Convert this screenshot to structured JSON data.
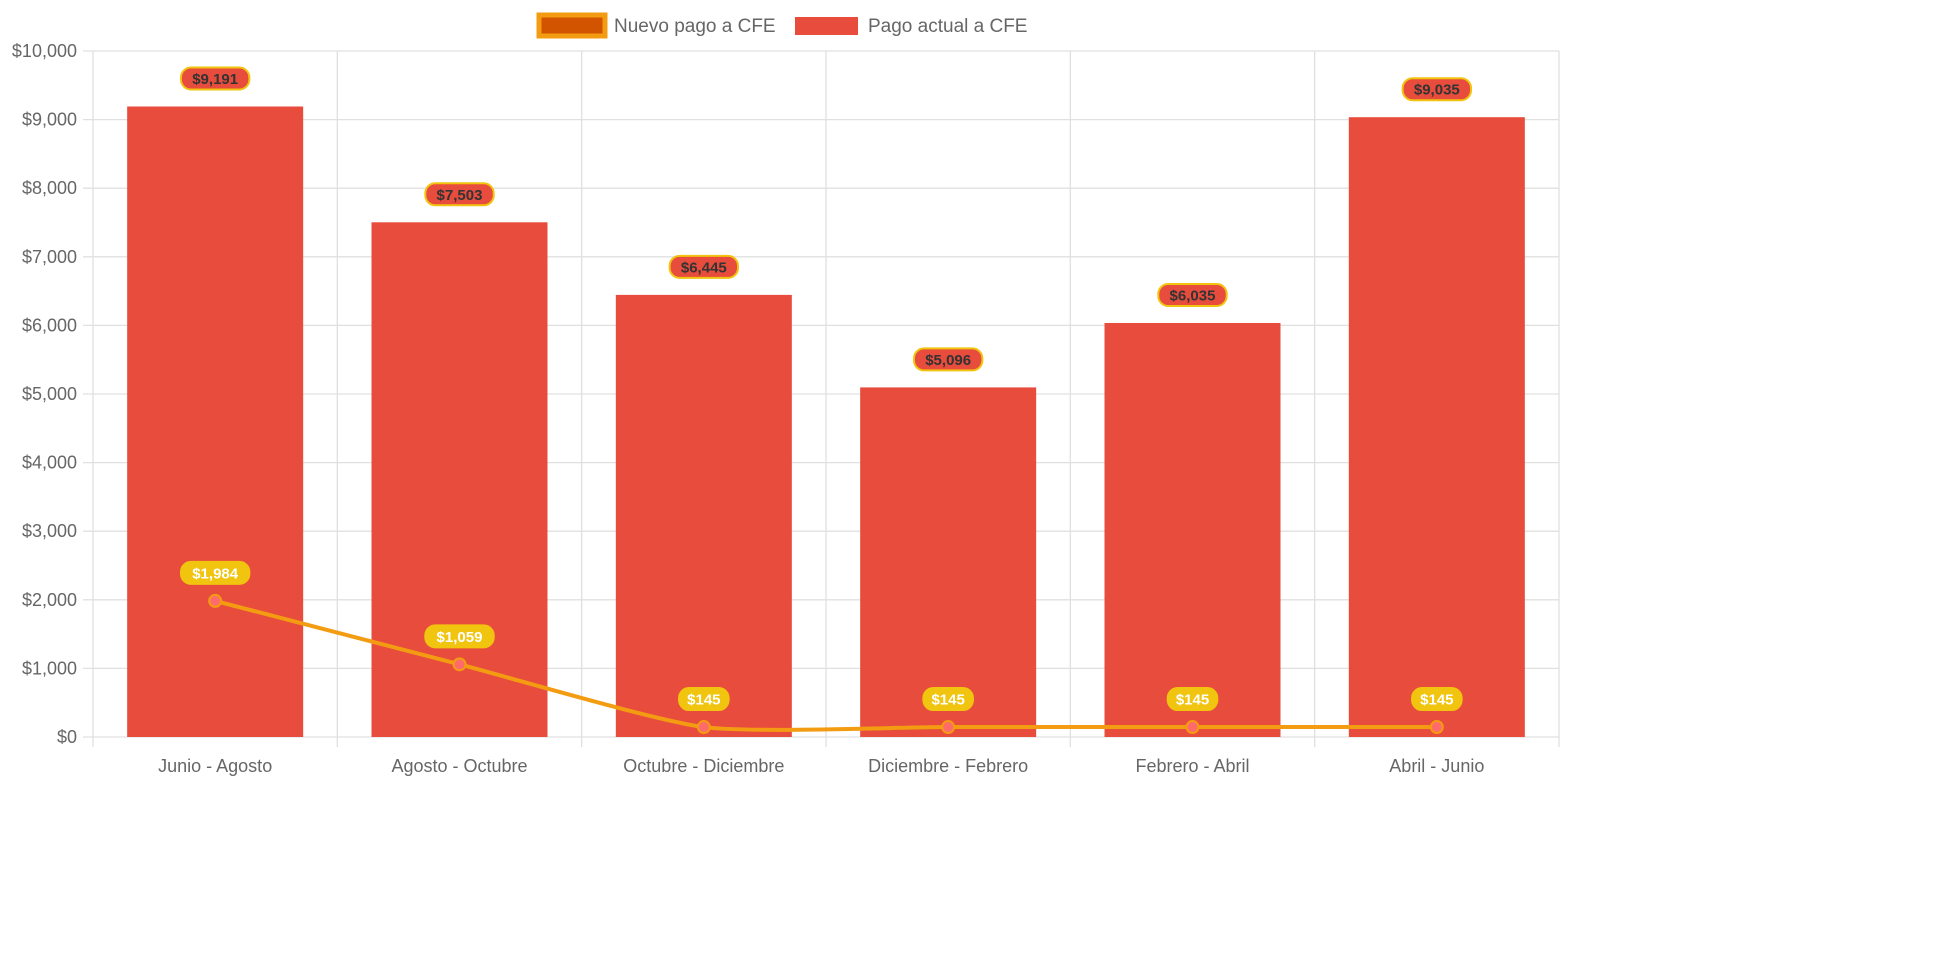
{
  "chart_data": {
    "type": "bar",
    "title": "",
    "xlabel": "",
    "ylabel": "",
    "categories": [
      "Junio - Agosto",
      "Agosto - Octubre",
      "Octubre - Diciembre",
      "Diciembre - Febrero",
      "Febrero - Abril",
      "Abril - Junio"
    ],
    "ylim": [
      0,
      10000
    ],
    "yticks": [
      0,
      1000,
      2000,
      3000,
      4000,
      5000,
      6000,
      7000,
      8000,
      9000,
      10000
    ],
    "ytick_labels": [
      "$0",
      "$1,000",
      "$2,000",
      "$3,000",
      "$4,000",
      "$5,000",
      "$6,000",
      "$7,000",
      "$8,000",
      "$9,000",
      "$10,000"
    ],
    "grid": true,
    "legend_position": "top-center",
    "series": [
      {
        "name": "Nuevo pago a CFE",
        "type": "line",
        "values": [
          1984,
          1059,
          145,
          145,
          145,
          145
        ],
        "labels": [
          "$1,984",
          "$1,059",
          "$145",
          "$145",
          "$145",
          "$145"
        ],
        "color": "#f39c12",
        "legend_fill": "#d35400",
        "point_color": "#ff6b6b",
        "label_bg": "#f1c40f",
        "label_text": "#ffffff"
      },
      {
        "name": "Pago actual a CFE",
        "type": "bar",
        "values": [
          9191,
          7503,
          6445,
          5096,
          6035,
          9035
        ],
        "labels": [
          "$9,191",
          "$7,503",
          "$6,445",
          "$5,096",
          "$6,035",
          "$9,035"
        ],
        "color": "#e74c3c",
        "label_bg": "#e74c3c",
        "label_border": "#f1c40f",
        "label_text": "#333333"
      }
    ]
  }
}
